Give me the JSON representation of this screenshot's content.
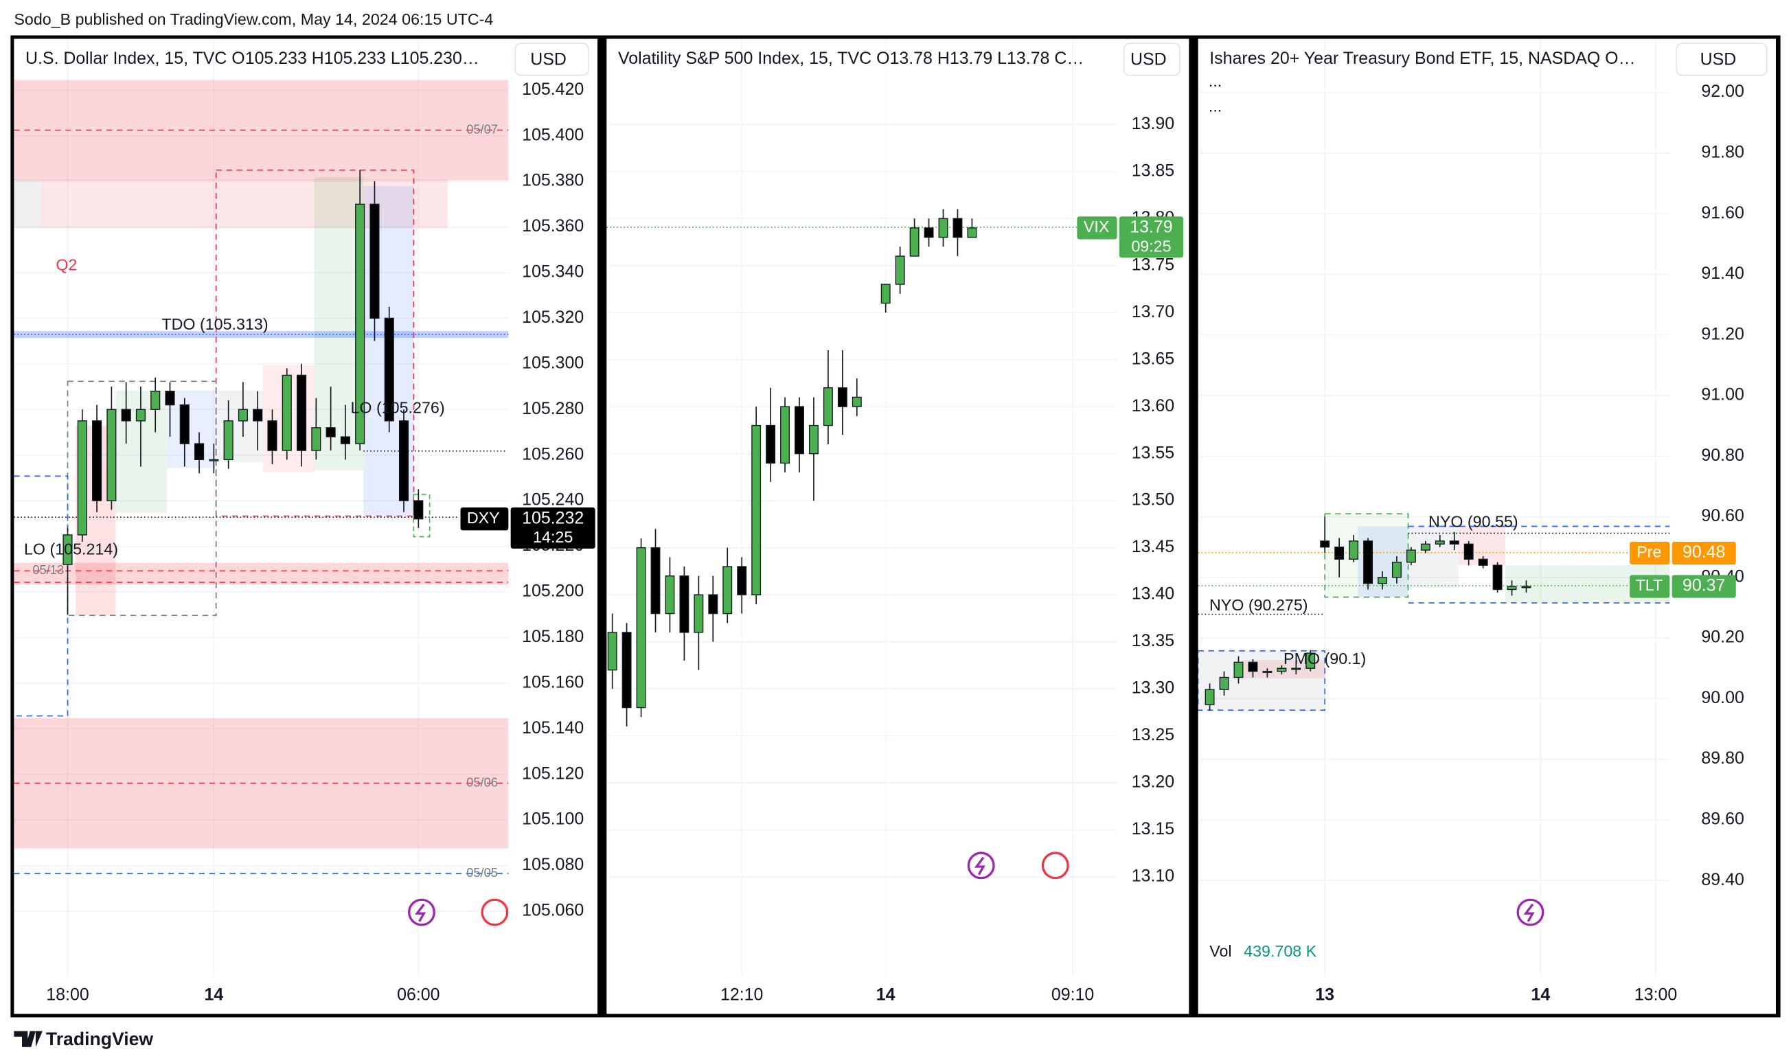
{
  "header": "Sodo_B published on TradingView.com, May 14, 2024 06:15 UTC-4",
  "brand": "TradingView",
  "chart_data": [
    {
      "type": "candlestick",
      "title": "U.S. Dollar Index, 15, TVC  O105.233  H105.233  L105.230…",
      "currency": "USD",
      "categories": [
        "18:00",
        null,
        null,
        null,
        null,
        null,
        null,
        null,
        null,
        null,
        "14",
        null,
        null,
        null,
        null,
        null,
        null,
        null,
        null,
        null,
        null,
        null,
        null,
        null,
        "06:00"
      ],
      "open": [
        105.212,
        105.225,
        105.275,
        105.24,
        105.28,
        105.275,
        105.28,
        105.288,
        105.282,
        105.265,
        105.258,
        105.258,
        105.275,
        105.28,
        105.275,
        105.262,
        105.295,
        105.262,
        105.272,
        105.268,
        105.265,
        105.37,
        105.32,
        105.275,
        105.24
      ],
      "high": [
        105.228,
        105.28,
        105.282,
        105.29,
        105.292,
        105.29,
        105.294,
        105.292,
        105.285,
        105.27,
        105.265,
        105.284,
        105.292,
        105.288,
        105.28,
        105.298,
        105.3,
        105.285,
        105.29,
        105.282,
        105.385,
        105.38,
        105.325,
        105.28,
        105.245
      ],
      "low": [
        105.19,
        105.222,
        105.235,
        105.236,
        105.265,
        105.255,
        105.27,
        105.268,
        105.255,
        105.252,
        105.252,
        105.254,
        105.268,
        105.262,
        105.256,
        105.258,
        105.255,
        105.258,
        105.262,
        105.258,
        105.262,
        105.31,
        105.27,
        105.235,
        105.228
      ],
      "close": [
        105.225,
        105.275,
        105.24,
        105.28,
        105.275,
        105.28,
        105.288,
        105.282,
        105.265,
        105.258,
        105.258,
        105.275,
        105.28,
        105.275,
        105.262,
        105.295,
        105.262,
        105.272,
        105.268,
        105.265,
        105.37,
        105.32,
        105.275,
        105.24,
        105.232
      ],
      "ylim": [
        105.0315,
        105.4425
      ],
      "yticks": [
        {
          "value": 105.42,
          "label": "105.420"
        },
        {
          "value": 105.4,
          "label": "105.400"
        },
        {
          "value": 105.38,
          "label": "105.380"
        },
        {
          "value": 105.36,
          "label": "105.360"
        },
        {
          "value": 105.34,
          "label": "105.340"
        },
        {
          "value": 105.32,
          "label": "105.320"
        },
        {
          "value": 105.3,
          "label": "105.300"
        },
        {
          "value": 105.28,
          "label": "105.280"
        },
        {
          "value": 105.26,
          "label": "105.260"
        },
        {
          "value": 105.24,
          "label": "105.240"
        },
        {
          "value": 105.22,
          "label": "105.220"
        },
        {
          "value": 105.2,
          "label": "105.200"
        },
        {
          "value": 105.18,
          "label": "105.180"
        },
        {
          "value": 105.16,
          "label": "105.160"
        },
        {
          "value": 105.14,
          "label": "105.140"
        },
        {
          "value": 105.12,
          "label": "105.120"
        },
        {
          "value": 105.1,
          "label": "105.100"
        },
        {
          "value": 105.08,
          "label": "105.080"
        },
        {
          "value": 105.06,
          "label": "105.060"
        }
      ],
      "grid": true,
      "up_color": "#4caf50",
      "down_color": "#000000",
      "annotations": [
        "Q2",
        "TDO (105.313)",
        "LO (105.276)",
        "LO (105.214)",
        "05/07",
        "05/06",
        "05/05",
        "05/13"
      ],
      "last": {
        "symbol": "DXY",
        "price": 105.232,
        "time": "14:25",
        "color": "#000000"
      }
    },
    {
      "type": "candlestick",
      "title": "Volatility S&P 500 Index, 15, TVC  O13.78  H13.79  L13.78  C…",
      "currency": "USD",
      "categories": [
        null,
        null,
        null,
        null,
        null,
        null,
        null,
        null,
        null,
        "12:10",
        null,
        null,
        null,
        null,
        null,
        null,
        null,
        null,
        null,
        "14",
        null,
        null,
        null,
        null,
        null,
        null,
        null,
        null,
        null,
        null,
        null,
        null,
        "09:10"
      ],
      "open": [
        13.32,
        13.36,
        13.28,
        13.45,
        13.38,
        13.42,
        13.36,
        13.4,
        13.38,
        13.43,
        13.4,
        13.58,
        13.54,
        13.6,
        13.55,
        13.58,
        13.62,
        13.6,
        null,
        13.71,
        13.73,
        13.76,
        13.79,
        13.78,
        13.8,
        13.78,
        null,
        null,
        null,
        null,
        null,
        null,
        null
      ],
      "high": [
        13.38,
        13.37,
        13.46,
        13.47,
        13.44,
        13.43,
        13.42,
        13.42,
        13.45,
        13.44,
        13.6,
        13.62,
        13.61,
        13.61,
        13.61,
        13.66,
        13.66,
        13.63,
        null,
        13.73,
        13.77,
        13.8,
        13.8,
        13.81,
        13.81,
        13.8,
        null,
        null,
        null,
        null,
        null,
        null,
        null
      ],
      "low": [
        13.3,
        13.26,
        13.27,
        13.36,
        13.36,
        13.33,
        13.32,
        13.35,
        13.37,
        13.38,
        13.39,
        13.52,
        13.53,
        13.53,
        13.5,
        13.56,
        13.57,
        13.59,
        null,
        13.7,
        13.72,
        13.76,
        13.77,
        13.77,
        13.76,
        13.78,
        null,
        null,
        null,
        null,
        null,
        null,
        null
      ],
      "close": [
        13.36,
        13.28,
        13.45,
        13.38,
        13.42,
        13.36,
        13.4,
        13.38,
        13.43,
        13.4,
        13.58,
        13.54,
        13.6,
        13.55,
        13.58,
        13.62,
        13.6,
        13.61,
        null,
        13.73,
        13.76,
        13.79,
        13.78,
        13.8,
        13.78,
        13.79,
        null,
        null,
        null,
        null,
        null,
        null,
        null
      ],
      "ylim": [
        12.9945,
        13.991
      ],
      "yticks": [
        {
          "value": 13.9,
          "label": "13.90"
        },
        13.85,
        {
          "value": 13.8,
          "label": "13.80"
        },
        13.75,
        {
          "value": 13.7,
          "label": "13.70"
        },
        13.65,
        {
          "value": 13.6,
          "label": "13.60"
        },
        13.55,
        {
          "value": 13.5,
          "label": "13.50"
        },
        13.45,
        {
          "value": 13.4,
          "label": "13.40"
        },
        13.35,
        {
          "value": 13.3,
          "label": "13.30"
        },
        13.25,
        {
          "value": 13.2,
          "label": "13.20"
        },
        13.15,
        {
          "value": 13.1,
          "label": "13.10"
        }
      ],
      "grid": true,
      "up_color": "#4caf50",
      "down_color": "#000000",
      "annotations": [],
      "last": {
        "symbol": "VIX",
        "price": 13.79,
        "time": "09:25",
        "color": "#4caf50"
      }
    },
    {
      "type": "candlestick",
      "title": "Ishares 20+ Year Treasury Bond ETF, 15, NASDAQ  O…",
      "currency": "USD",
      "categories": [
        null,
        null,
        null,
        null,
        null,
        null,
        null,
        null,
        "13",
        null,
        null,
        null,
        null,
        null,
        null,
        null,
        null,
        null,
        null,
        null,
        null,
        null,
        null,
        "14",
        null,
        null,
        null,
        null,
        null,
        null,
        null,
        "13:00"
      ],
      "open": [
        89.98,
        90.03,
        90.07,
        90.12,
        90.09,
        90.09,
        90.1,
        90.1,
        90.52,
        90.5,
        90.46,
        90.52,
        90.38,
        90.4,
        90.45,
        90.49,
        90.51,
        90.52,
        90.51,
        90.46,
        90.44,
        90.36,
        90.37,
        null,
        null,
        null,
        null,
        null,
        null,
        null,
        null,
        null
      ],
      "high": [
        90.05,
        90.09,
        90.14,
        90.13,
        90.1,
        90.11,
        90.12,
        90.16,
        90.6,
        90.53,
        90.54,
        90.53,
        90.42,
        90.47,
        90.5,
        90.52,
        90.54,
        90.55,
        90.52,
        90.47,
        90.45,
        90.39,
        90.39,
        null,
        null,
        null,
        null,
        null,
        null,
        null,
        null,
        null
      ],
      "low": [
        89.96,
        90.01,
        90.05,
        90.07,
        90.07,
        90.08,
        90.08,
        90.09,
        90.48,
        90.4,
        90.45,
        90.36,
        90.36,
        90.38,
        90.44,
        90.48,
        90.5,
        90.49,
        90.44,
        90.43,
        90.35,
        90.34,
        90.35,
        null,
        null,
        null,
        null,
        null,
        null,
        null,
        null,
        null
      ],
      "close": [
        90.03,
        90.07,
        90.12,
        90.09,
        90.09,
        90.1,
        90.1,
        90.15,
        90.5,
        90.46,
        90.52,
        90.38,
        90.4,
        90.45,
        90.49,
        90.51,
        90.52,
        90.51,
        90.46,
        90.44,
        90.36,
        90.37,
        90.37,
        null,
        null,
        null,
        null,
        null,
        null,
        null,
        null,
        null
      ],
      "ylim": [
        89.084,
        92.177
      ],
      "yticks": [
        {
          "value": 92,
          "label": "92.00"
        },
        {
          "value": 91.8,
          "label": "91.80"
        },
        {
          "value": 91.6,
          "label": "91.60"
        },
        {
          "value": 91.4,
          "label": "91.40"
        },
        {
          "value": 91.2,
          "label": "91.20"
        },
        {
          "value": 91,
          "label": "91.00"
        },
        {
          "value": 90.8,
          "label": "90.80"
        },
        {
          "value": 90.6,
          "label": "90.60"
        },
        {
          "value": 90.4,
          "label": "90.40"
        },
        {
          "value": 90.2,
          "label": "90.20"
        },
        {
          "value": 90,
          "label": "90.00"
        },
        {
          "value": 89.8,
          "label": "89.80"
        },
        {
          "value": 89.6,
          "label": "89.60"
        },
        {
          "value": 89.4,
          "label": "89.40"
        }
      ],
      "grid": true,
      "up_color": "#4caf50",
      "down_color": "#000000",
      "annotations": [
        "NYO (90.55)",
        "NYO (90.275)",
        "PMO (90.1)",
        "...",
        "..."
      ],
      "pre": {
        "label": "Pre",
        "price": 90.48,
        "color": "#ff9800"
      },
      "last": {
        "symbol": "TLT",
        "price": 90.37,
        "color": "#4caf50"
      },
      "volume_label": "Vol",
      "volume": "439.708 K"
    }
  ]
}
